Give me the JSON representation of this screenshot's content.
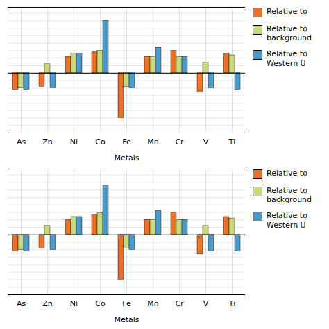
{
  "chart_data": [
    {
      "type": "bar",
      "categories": [
        "As",
        "Zn",
        "Ni",
        "Co",
        "Fe",
        "Mn",
        "Cr",
        "V",
        "Ti"
      ],
      "series": [
        {
          "name": "Relative to",
          "color": "#E8722A",
          "values": [
            -0.55,
            -0.45,
            0.55,
            0.7,
            -1.5,
            0.55,
            0.75,
            -0.65,
            0.65
          ]
        },
        {
          "name": "Relative to\nbackground",
          "color": "#C8D87A",
          "values": [
            -0.5,
            0.3,
            0.65,
            0.75,
            -0.45,
            0.55,
            0.55,
            0.35,
            0.6
          ]
        },
        {
          "name": "Relative to\nWestern U",
          "color": "#4B9AC7",
          "values": [
            -0.55,
            -0.5,
            0.65,
            1.75,
            -0.5,
            0.85,
            0.55,
            -0.5,
            -0.55
          ]
        }
      ],
      "xlabel": "Metals",
      "ylim": [
        -2.0,
        2.2
      ],
      "yticks": [
        -2,
        -1.75,
        -1.5,
        -1.25,
        -1,
        -0.75,
        -0.5,
        -0.25,
        0,
        0.25,
        0.5,
        0.75,
        1,
        1.25,
        1.5,
        1.75,
        2
      ],
      "grid": true,
      "legend": "right",
      "tick_labels": "x"
    },
    {
      "type": "bar",
      "categories": [
        "As",
        "Zn",
        "Ni",
        "Co",
        "Fe",
        "Mn",
        "Cr",
        "V",
        "Ti"
      ],
      "series": [
        {
          "name": "Relative to",
          "color": "#E8722A",
          "values": [
            -0.55,
            -0.45,
            0.5,
            0.65,
            -1.5,
            0.5,
            0.75,
            -0.65,
            0.6
          ]
        },
        {
          "name": "Relative to\nbackground",
          "color": "#C8D87A",
          "values": [
            -0.5,
            0.3,
            0.6,
            0.72,
            -0.45,
            0.5,
            0.5,
            0.3,
            0.55
          ]
        },
        {
          "name": "Relative to\nWestern U",
          "color": "#4B9AC7",
          "values": [
            -0.55,
            -0.5,
            0.6,
            1.65,
            -0.5,
            0.8,
            0.5,
            -0.55,
            -0.55
          ]
        }
      ],
      "xlabel": "Metals",
      "ylim": [
        -2.0,
        2.2
      ],
      "yticks": [
        -2,
        -1.75,
        -1.5,
        -1.25,
        -1,
        -0.75,
        -0.5,
        -0.25,
        0,
        0.25,
        0.5,
        0.75,
        1,
        1.25,
        1.5,
        1.75,
        2
      ],
      "grid": true,
      "legend": "right",
      "tick_labels": "x"
    }
  ]
}
